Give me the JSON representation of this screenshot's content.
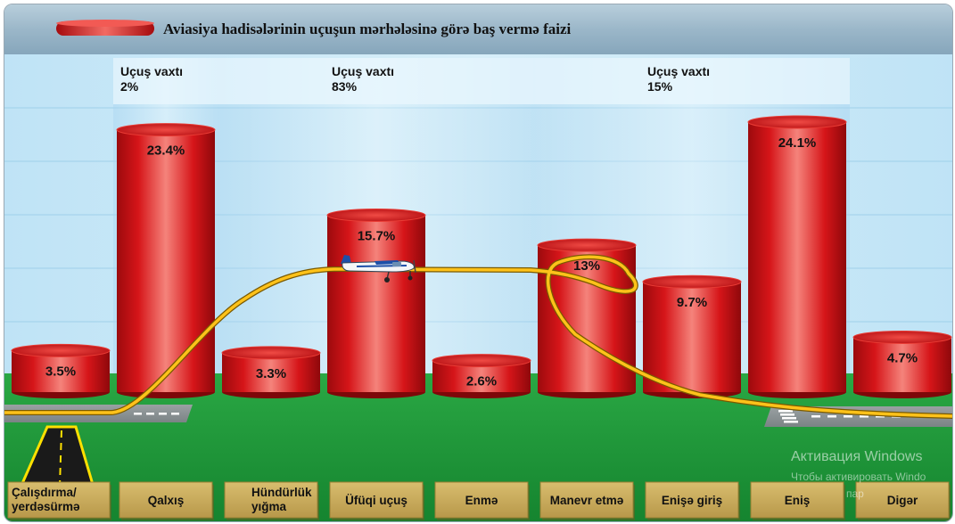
{
  "chart_data": {
    "type": "bar",
    "title": "Aviasiya hadisələrinin uçuşun mərhələsinə görə baş vermə faizi",
    "categories": [
      "Çalışdırma/ yerdəsürmə",
      "Qalxış",
      "Hündürlük yığma",
      "Üfüqi uçuş",
      "Enmə",
      "Manevr etmə",
      "Enişə giriş",
      "Eniş",
      "Digər"
    ],
    "values": [
      3.5,
      23.4,
      3.3,
      15.7,
      2.6,
      13,
      9.7,
      24.1,
      4.7
    ],
    "value_labels": [
      "3.5%",
      "23.4%",
      "3.3%",
      "15.7%",
      "2.6%",
      "13%",
      "9.7%",
      "24.1%",
      "4.7%"
    ],
    "phases": [
      {
        "label": "Uçuş vaxtı",
        "value": "2%",
        "from": 1,
        "to": 1
      },
      {
        "label": "Uçuş vaxtı",
        "value": "83%",
        "from": 2,
        "to": 4
      },
      {
        "label": "Uçuş vaxtı",
        "value": "15%",
        "from": 5,
        "to": 7
      }
    ],
    "colors": {
      "bar": "#d81418",
      "ground": "#1f9a3a",
      "label_box": "#c7a95a",
      "sky": "#d8eef9"
    }
  },
  "watermark": {
    "line1": "Активация Windows",
    "line2": "Чтобы активировать Windo",
    "line3": "пар"
  }
}
